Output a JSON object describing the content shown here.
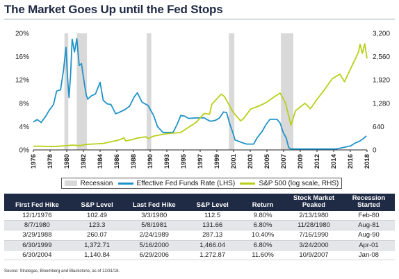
{
  "title": "The Market Goes Up until the Fed Stops",
  "source": "Source: Strategas, Bloomberg and Blackstone, as of 12/31/18.",
  "colors": {
    "recession": "#d9d9d9",
    "fed_funds": "#1f93c8",
    "sp500": "#b8cf18",
    "header_bg": "#1f2a44"
  },
  "legend": {
    "recession": "Recession",
    "fed_funds": "Effective Fed Funds Rate (LHS)",
    "sp500": "S&P 500 (log scale, RHS)"
  },
  "chart_data": {
    "type": "line",
    "title": "The Market Goes Up until the Fed Stops",
    "x_tick_labels": [
      "1976",
      "1978",
      "1980",
      "1982",
      "1984",
      "1986",
      "1988",
      "1990",
      "1993",
      "1995",
      "1997",
      "1999",
      "2001",
      "2003",
      "2005",
      "2007",
      "2009",
      "2012",
      "2014",
      "2016",
      "2018"
    ],
    "xlim": [
      1976,
      2019
    ],
    "left_axis": {
      "ylim": [
        0,
        20
      ],
      "tick_labels": [
        "0%",
        "4%",
        "8%",
        "12%",
        "16%",
        "20%"
      ],
      "ticks": [
        0,
        4,
        8,
        12,
        16,
        20
      ]
    },
    "right_axis": {
      "scale": "log",
      "ylim": [
        0,
        3200
      ],
      "tick_labels": [
        "0",
        "640",
        "1,280",
        "1,920",
        "2,560",
        "3,200"
      ],
      "ticks": [
        0,
        640,
        1280,
        1920,
        2560,
        3200
      ]
    },
    "recessions": [
      [
        1980.0,
        1980.5
      ],
      [
        1981.6,
        1982.9
      ],
      [
        1990.6,
        1991.2
      ],
      [
        2001.2,
        2001.9
      ],
      [
        2007.9,
        2009.5
      ]
    ],
    "series": [
      {
        "name": "Effective Fed Funds Rate (LHS)",
        "axis": "left",
        "points": [
          [
            1976.0,
            4.8
          ],
          [
            1976.5,
            5.2
          ],
          [
            1977.0,
            4.7
          ],
          [
            1977.6,
            5.8
          ],
          [
            1978.0,
            6.7
          ],
          [
            1978.6,
            7.8
          ],
          [
            1979.0,
            10.1
          ],
          [
            1979.5,
            10.3
          ],
          [
            1979.9,
            13.8
          ],
          [
            1980.2,
            17.6
          ],
          [
            1980.4,
            12.5
          ],
          [
            1980.6,
            9.0
          ],
          [
            1980.8,
            13.0
          ],
          [
            1981.0,
            19.0
          ],
          [
            1981.3,
            16.8
          ],
          [
            1981.6,
            19.1
          ],
          [
            1981.9,
            14.5
          ],
          [
            1982.2,
            14.8
          ],
          [
            1982.5,
            12.0
          ],
          [
            1982.8,
            9.5
          ],
          [
            1983.0,
            8.7
          ],
          [
            1983.5,
            9.3
          ],
          [
            1984.0,
            9.6
          ],
          [
            1984.6,
            11.6
          ],
          [
            1985.0,
            8.5
          ],
          [
            1985.5,
            7.9
          ],
          [
            1986.0,
            7.8
          ],
          [
            1986.6,
            6.2
          ],
          [
            1987.0,
            6.4
          ],
          [
            1987.8,
            6.9
          ],
          [
            1988.4,
            7.5
          ],
          [
            1989.0,
            9.1
          ],
          [
            1989.4,
            9.8
          ],
          [
            1990.0,
            8.2
          ],
          [
            1990.8,
            7.6
          ],
          [
            1991.5,
            5.9
          ],
          [
            1992.0,
            4.0
          ],
          [
            1992.7,
            3.0
          ],
          [
            1993.5,
            3.0
          ],
          [
            1994.0,
            3.0
          ],
          [
            1994.5,
            4.3
          ],
          [
            1995.0,
            5.9
          ],
          [
            1995.5,
            5.8
          ],
          [
            1996.0,
            5.4
          ],
          [
            1997.0,
            5.5
          ],
          [
            1998.0,
            5.5
          ],
          [
            1998.8,
            4.9
          ],
          [
            1999.5,
            5.1
          ],
          [
            2000.0,
            5.5
          ],
          [
            2000.5,
            6.5
          ],
          [
            2000.9,
            6.4
          ],
          [
            2001.3,
            4.5
          ],
          [
            2001.7,
            3.0
          ],
          [
            2002.0,
            1.7
          ],
          [
            2003.0,
            1.2
          ],
          [
            2003.5,
            1.0
          ],
          [
            2004.4,
            1.0
          ],
          [
            2004.8,
            2.0
          ],
          [
            2005.5,
            3.2
          ],
          [
            2006.0,
            4.4
          ],
          [
            2006.5,
            5.25
          ],
          [
            2007.4,
            5.25
          ],
          [
            2007.8,
            4.6
          ],
          [
            2008.2,
            3.0
          ],
          [
            2008.6,
            2.0
          ],
          [
            2008.9,
            0.4
          ],
          [
            2009.2,
            0.15
          ],
          [
            2012.0,
            0.15
          ],
          [
            2015.0,
            0.15
          ],
          [
            2015.9,
            0.4
          ],
          [
            2016.9,
            0.7
          ],
          [
            2017.5,
            1.2
          ],
          [
            2018.0,
            1.45
          ],
          [
            2018.5,
            1.9
          ],
          [
            2018.9,
            2.4
          ]
        ]
      },
      {
        "name": "S&P 500 (log scale, RHS)",
        "axis": "right",
        "points": [
          [
            1976.0,
            102
          ],
          [
            1977.0,
            102
          ],
          [
            1978.0,
            93
          ],
          [
            1979.0,
            99
          ],
          [
            1980.0,
            112
          ],
          [
            1981.0,
            132
          ],
          [
            1982.0,
            118
          ],
          [
            1983.0,
            155
          ],
          [
            1984.0,
            164
          ],
          [
            1985.0,
            180
          ],
          [
            1986.0,
            225
          ],
          [
            1987.0,
            270
          ],
          [
            1987.7,
            330
          ],
          [
            1987.9,
            248
          ],
          [
            1988.5,
            270
          ],
          [
            1989.5,
            330
          ],
          [
            1990.5,
            360
          ],
          [
            1990.8,
            310
          ],
          [
            1991.5,
            380
          ],
          [
            1993.0,
            440
          ],
          [
            1995.0,
            480
          ],
          [
            1996.0,
            620
          ],
          [
            1997.0,
            760
          ],
          [
            1998.0,
            1000
          ],
          [
            1998.7,
            980
          ],
          [
            1999.0,
            1250
          ],
          [
            2000.2,
            1530
          ],
          [
            2000.6,
            1470
          ],
          [
            2001.0,
            1320
          ],
          [
            2001.7,
            1050
          ],
          [
            2002.7,
            800
          ],
          [
            2003.0,
            840
          ],
          [
            2004.0,
            1120
          ],
          [
            2005.0,
            1200
          ],
          [
            2006.0,
            1300
          ],
          [
            2007.0,
            1450
          ],
          [
            2007.8,
            1560
          ],
          [
            2008.5,
            1280
          ],
          [
            2009.2,
            680
          ],
          [
            2009.8,
            1080
          ],
          [
            2011.0,
            1280
          ],
          [
            2011.7,
            1130
          ],
          [
            2012.5,
            1370
          ],
          [
            2013.5,
            1650
          ],
          [
            2014.5,
            1950
          ],
          [
            2015.5,
            2080
          ],
          [
            2016.1,
            1870
          ],
          [
            2017.0,
            2280
          ],
          [
            2017.9,
            2680
          ],
          [
            2018.1,
            2900
          ],
          [
            2018.4,
            2650
          ],
          [
            2018.7,
            2910
          ],
          [
            2019.0,
            2510
          ]
        ]
      }
    ]
  },
  "table": {
    "headers": [
      "First Fed Hike",
      "S&P Level",
      "Last Fed Hike",
      "S&P Level",
      "Return",
      "Stock Market Peaked",
      "Recession Started"
    ],
    "rows": [
      [
        "12/1/1976",
        "102.49",
        "3/3/1980",
        "112.5",
        "9.80%",
        "2/13/1980",
        "Feb-80"
      ],
      [
        "8/7/1980",
        "123.3",
        "5/8/1981",
        "131.66",
        "6.80%",
        "11/28/1980",
        "Aug-81"
      ],
      [
        "3/29/1988",
        "260.07",
        "2/24/1989",
        "287.13",
        "10.40%",
        "7/16/1990",
        "Aug-90"
      ],
      [
        "6/30/1999",
        "1,372.71",
        "5/16/2000",
        "1,466.04",
        "6.80%",
        "3/24/2000",
        "Apr-01"
      ],
      [
        "6/30/2004",
        "1,140.84",
        "6/29/2006",
        "1,272.87",
        "11.60%",
        "10/9/2007",
        "Jan-08"
      ]
    ]
  }
}
